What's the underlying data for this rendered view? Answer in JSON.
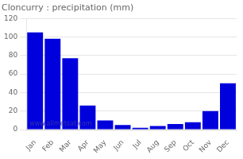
{
  "chart_data": {
    "type": "bar",
    "title": "Cloncurry : precipitation (mm)",
    "categories": [
      "Jan",
      "Feb",
      "Mar",
      "Apr",
      "May",
      "Jun",
      "Jul",
      "Aug",
      "Sep",
      "Oct",
      "Nov",
      "Dec"
    ],
    "values": [
      105,
      98,
      77,
      26,
      10,
      5,
      2,
      4,
      6,
      8,
      20,
      50
    ],
    "color": "#0000dd",
    "ylim": [
      0,
      120
    ],
    "yticks": [
      0,
      20,
      40,
      60,
      80,
      100,
      120
    ],
    "grid": true,
    "annotations": [
      "www.allmetsat.com"
    ]
  }
}
